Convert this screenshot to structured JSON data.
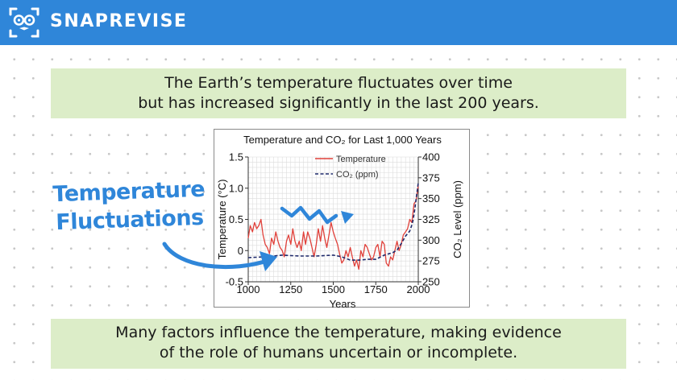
{
  "header": {
    "brand": "SNAPREVISE",
    "logo_icon": "mascot-face-icon",
    "bg_color": "#2f86d9"
  },
  "top_box": {
    "line1": "The Earth’s temperature fluctuates over time",
    "line2": "but has increased significantly in the last 200 years."
  },
  "bottom_box": {
    "line1": "Many factors influence the temperature, making evidence",
    "line2": "of the role of humans uncertain or incomplete."
  },
  "annotation": {
    "line1": "Temperature",
    "line2": "Fluctuations",
    "color": "#2f86d9"
  },
  "chart_data": {
    "type": "line",
    "title": "Temperature and CO₂ for Last 1,000 Years",
    "xlabel": "Years",
    "ylabel_left": "Temperature (°C)",
    "ylabel_right": "CO₂ Level (ppm)",
    "xlim": [
      1000,
      2000
    ],
    "ylim_left": [
      -0.5,
      1.5
    ],
    "ylim_right": [
      250,
      400
    ],
    "x_ticks": [
      "1000",
      "1250",
      "1500",
      "1750",
      "2000"
    ],
    "y_ticks_left": [
      "1.5",
      "1.0",
      "0.5",
      "0",
      "-0.5"
    ],
    "y_ticks_right": [
      "400",
      "375",
      "350",
      "325",
      "300",
      "275",
      "250"
    ],
    "grid": true,
    "legend_position": "top-center",
    "series": [
      {
        "name": "Temperature",
        "axis": "left",
        "color": "#e0403a",
        "style": "solid",
        "x": [
          1000,
          1012,
          1025,
          1037,
          1050,
          1062,
          1075,
          1087,
          1100,
          1112,
          1125,
          1137,
          1150,
          1162,
          1175,
          1187,
          1200,
          1212,
          1225,
          1237,
          1250,
          1262,
          1275,
          1287,
          1300,
          1312,
          1325,
          1337,
          1350,
          1362,
          1375,
          1387,
          1400,
          1412,
          1425,
          1437,
          1450,
          1462,
          1475,
          1487,
          1500,
          1512,
          1525,
          1537,
          1550,
          1562,
          1575,
          1587,
          1600,
          1612,
          1625,
          1637,
          1650,
          1662,
          1675,
          1687,
          1700,
          1712,
          1725,
          1737,
          1750,
          1762,
          1775,
          1787,
          1800,
          1812,
          1825,
          1837,
          1850,
          1862,
          1875,
          1887,
          1900,
          1912,
          1925,
          1937,
          1950,
          1962,
          1975,
          1987,
          2000
        ],
        "values": [
          0.2,
          0.4,
          0.3,
          0.45,
          0.35,
          0.4,
          0.5,
          0.25,
          0.1,
          0.05,
          -0.05,
          0.2,
          0.1,
          0.3,
          0.15,
          0.05,
          0.0,
          -0.1,
          0.15,
          0.25,
          0.1,
          0.35,
          0.15,
          0.05,
          0.15,
          0.0,
          0.3,
          0.1,
          0.3,
          0.2,
          0.05,
          -0.1,
          0.1,
          0.35,
          0.15,
          0.4,
          0.2,
          0.05,
          0.25,
          0.45,
          0.3,
          0.2,
          0.1,
          -0.05,
          -0.2,
          -0.15,
          0.0,
          -0.1,
          0.05,
          -0.1,
          -0.25,
          -0.15,
          -0.3,
          0.0,
          -0.1,
          0.1,
          0.05,
          -0.05,
          -0.15,
          -0.1,
          0.05,
          0.1,
          -0.1,
          0.15,
          0.1,
          -0.2,
          -0.25,
          -0.1,
          -0.15,
          0.0,
          0.15,
          0.0,
          0.1,
          0.25,
          0.3,
          0.35,
          0.5,
          0.45,
          0.75,
          0.8,
          1.05
        ]
      },
      {
        "name": "CO₂ (ppm)",
        "axis": "right",
        "color": "#1f2a6b",
        "style": "dashed",
        "x": [
          1000,
          1100,
          1200,
          1300,
          1400,
          1500,
          1550,
          1600,
          1650,
          1700,
          1750,
          1800,
          1850,
          1875,
          1900,
          1925,
          1950,
          1960,
          1970,
          1980,
          1990,
          2000
        ],
        "values": [
          279,
          280,
          282,
          281,
          281,
          282,
          280,
          276,
          276,
          277,
          277,
          282,
          285,
          288,
          296,
          305,
          311,
          317,
          325,
          338,
          354,
          369
        ]
      }
    ]
  }
}
